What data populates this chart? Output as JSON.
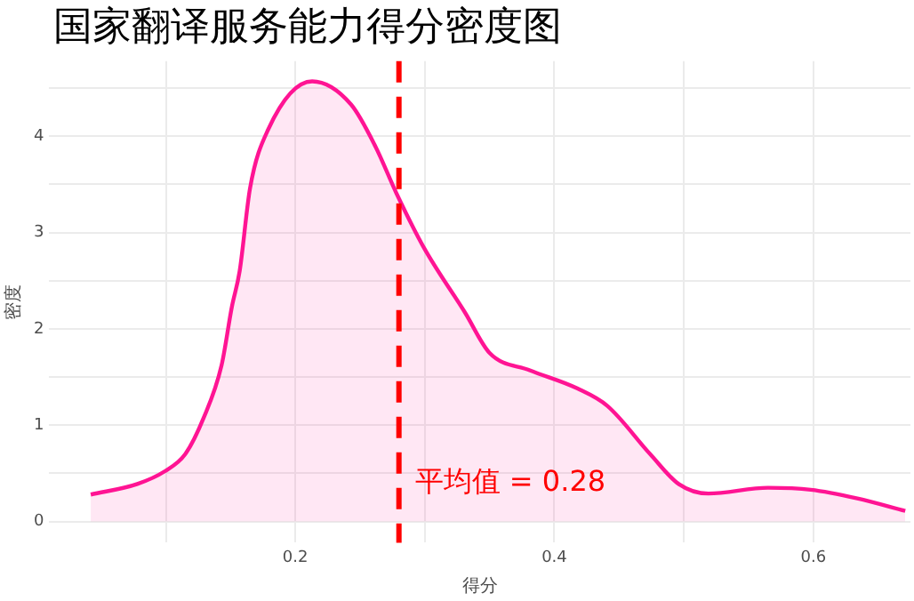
{
  "chart_data": {
    "type": "area",
    "title": "国家翻译服务能力得分密度图",
    "xlabel": "得分",
    "ylabel": "密度",
    "x": [
      0.042,
      0.078,
      0.099,
      0.115,
      0.129,
      0.143,
      0.151,
      0.157,
      0.165,
      0.179,
      0.213,
      0.243,
      0.262,
      0.278,
      0.299,
      0.331,
      0.35,
      0.381,
      0.418,
      0.441,
      0.474,
      0.496,
      0.519,
      0.565,
      0.598,
      0.634,
      0.671
    ],
    "series": [
      {
        "color": "#ff1493",
        "values": [
          0.28,
          0.39,
          0.52,
          0.7,
          1.07,
          1.62,
          2.23,
          2.6,
          3.46,
          4.07,
          4.57,
          4.33,
          3.89,
          3.41,
          2.85,
          2.17,
          1.75,
          1.57,
          1.38,
          1.2,
          0.7,
          0.39,
          0.29,
          0.35,
          0.33,
          0.24,
          0.11
        ]
      }
    ],
    "xlim": [
      0.01,
      0.675
    ],
    "ylim": [
      -0.22,
      4.78
    ],
    "xticks": [
      {
        "value": 0.1,
        "label": null
      },
      0.2,
      {
        "value": 0.3,
        "label": null
      },
      0.4,
      {
        "value": 0.5,
        "label": null
      },
      0.6
    ],
    "yticks": [
      0,
      {
        "value": 0.5,
        "label": null
      },
      1,
      {
        "value": 1.5,
        "label": null
      },
      2,
      {
        "value": 2.5,
        "label": null
      },
      3,
      {
        "value": 3.5,
        "label": null
      },
      4,
      {
        "value": 4.5,
        "label": null
      }
    ],
    "ref_lines": [
      {
        "axis": "x",
        "value": 0.28,
        "label": "平均值 = 0.28",
        "color": "#ff0000",
        "line_style": "dashed"
      }
    ],
    "grid": true,
    "legend": false
  }
}
